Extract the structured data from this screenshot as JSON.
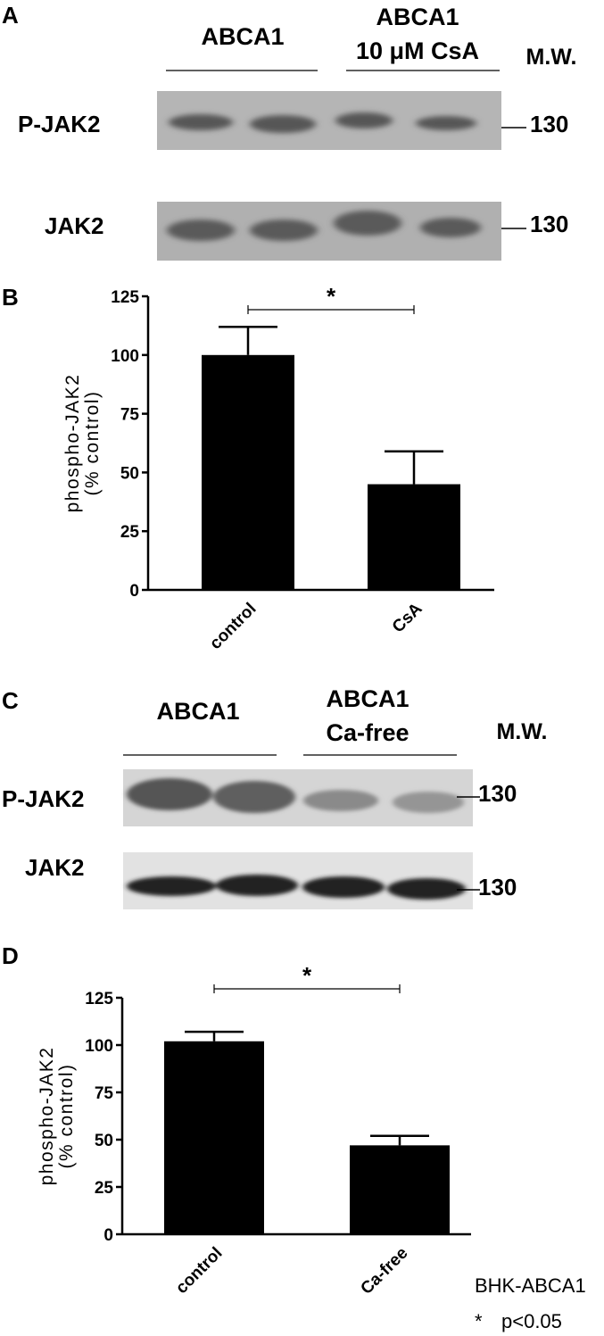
{
  "panel_a": {
    "letter": "A",
    "group1": "ABCA1",
    "group2_line1": "ABCA1",
    "group2_line2": "10 μM CsA",
    "mw_label": "M.W.",
    "rows": [
      {
        "label": "P-JAK2",
        "mw": "130"
      },
      {
        "label": "JAK2",
        "mw": "130"
      }
    ]
  },
  "panel_c": {
    "letter": "C",
    "group1": "ABCA1",
    "group2_line1": "ABCA1",
    "group2_line2": "Ca-free",
    "mw_label": "M.W.",
    "rows": [
      {
        "label": "P-JAK2",
        "mw": "130"
      },
      {
        "label": "JAK2",
        "mw": "130"
      }
    ]
  },
  "chart_data": [
    {
      "panel": "B",
      "type": "bar",
      "categories": [
        "control",
        "CsA"
      ],
      "values": [
        100,
        45
      ],
      "errors": [
        12,
        14
      ],
      "ylabel_line1": "phospho-JAK2",
      "ylabel_line2": "(% control)",
      "ylim": [
        0,
        125
      ],
      "yticks": [
        "0",
        "25",
        "50",
        "75",
        "100",
        "125"
      ],
      "significance": "*",
      "bar_color": "#000000"
    },
    {
      "panel": "D",
      "type": "bar",
      "categories": [
        "control",
        "Ca-free"
      ],
      "values": [
        102,
        47
      ],
      "errors": [
        5,
        5
      ],
      "ylabel_line1": "phospho-JAK2",
      "ylabel_line2": "(% control)",
      "ylim": [
        0,
        125
      ],
      "yticks": [
        "0",
        "25",
        "50",
        "75",
        "100",
        "125"
      ],
      "significance": "*",
      "bar_color": "#000000"
    }
  ],
  "footnote": {
    "cell_line": "BHK-ABCA1",
    "sig_symbol": "*",
    "sig_text": "p<0.05"
  }
}
